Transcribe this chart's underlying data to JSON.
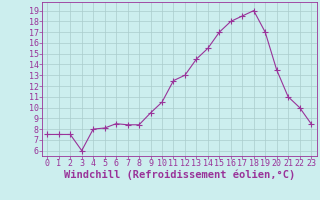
{
  "x": [
    0,
    1,
    2,
    3,
    4,
    5,
    6,
    7,
    8,
    9,
    10,
    11,
    12,
    13,
    14,
    15,
    16,
    17,
    18,
    19,
    20,
    21,
    22,
    23
  ],
  "y": [
    7.5,
    7.5,
    7.5,
    6.0,
    8.0,
    8.1,
    8.5,
    8.4,
    8.4,
    9.5,
    10.5,
    12.5,
    13.0,
    14.5,
    15.5,
    17.0,
    18.0,
    18.5,
    19.0,
    17.0,
    13.5,
    11.0,
    10.0,
    8.5
  ],
  "line_color": "#993399",
  "marker": "+",
  "marker_color": "#993399",
  "bg_color": "#cceeee",
  "grid_color": "#aacccc",
  "xlabel": "Windchill (Refroidissement éolien,°C)",
  "xlabel_color": "#993399",
  "tick_color": "#993399",
  "ylim": [
    5.5,
    19.8
  ],
  "xlim": [
    -0.5,
    23.5
  ],
  "yticks": [
    6,
    7,
    8,
    9,
    10,
    11,
    12,
    13,
    14,
    15,
    16,
    17,
    18,
    19
  ],
  "xticks": [
    0,
    1,
    2,
    3,
    4,
    5,
    6,
    7,
    8,
    9,
    10,
    11,
    12,
    13,
    14,
    15,
    16,
    17,
    18,
    19,
    20,
    21,
    22,
    23
  ],
  "tick_fontsize": 6,
  "xlabel_fontsize": 7.5
}
